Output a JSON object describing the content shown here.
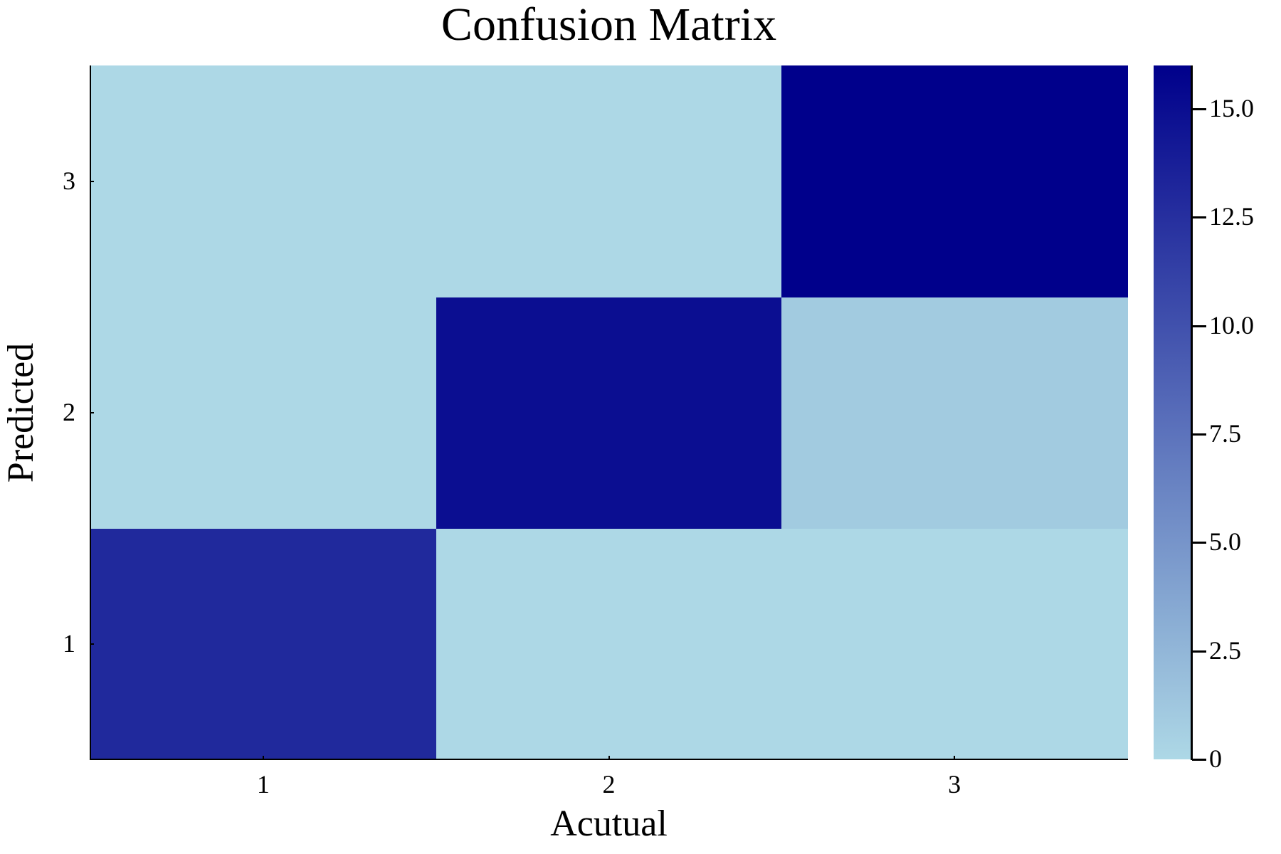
{
  "chart_data": {
    "type": "heatmap",
    "title": "Confusion Matrix",
    "xlabel": "Acutual",
    "ylabel": "Predicted",
    "x_categories": [
      "1",
      "2",
      "3"
    ],
    "y_categories": [
      "1",
      "2",
      "3"
    ],
    "matrix_note": "rows = Predicted (1 at bottom), columns = Acutual",
    "values": [
      [
        13,
        0,
        0
      ],
      [
        0,
        15,
        1
      ],
      [
        0,
        0,
        16
      ]
    ],
    "colorbar": {
      "range": [
        0,
        16
      ],
      "ticks": [
        0,
        2.5,
        5.0,
        7.5,
        10.0,
        12.5,
        15.0
      ],
      "tick_labels": [
        "0",
        "2.5",
        "5.0",
        "7.5",
        "10.0",
        "12.5",
        "15.0"
      ],
      "colormap": [
        "#ADD8E6",
        "#00008B"
      ]
    },
    "grid": false,
    "legend": "colorbar-right"
  },
  "colors": {
    "low": "#ADD8E6",
    "high": "#00008B",
    "mid": "#5A6DB5"
  }
}
